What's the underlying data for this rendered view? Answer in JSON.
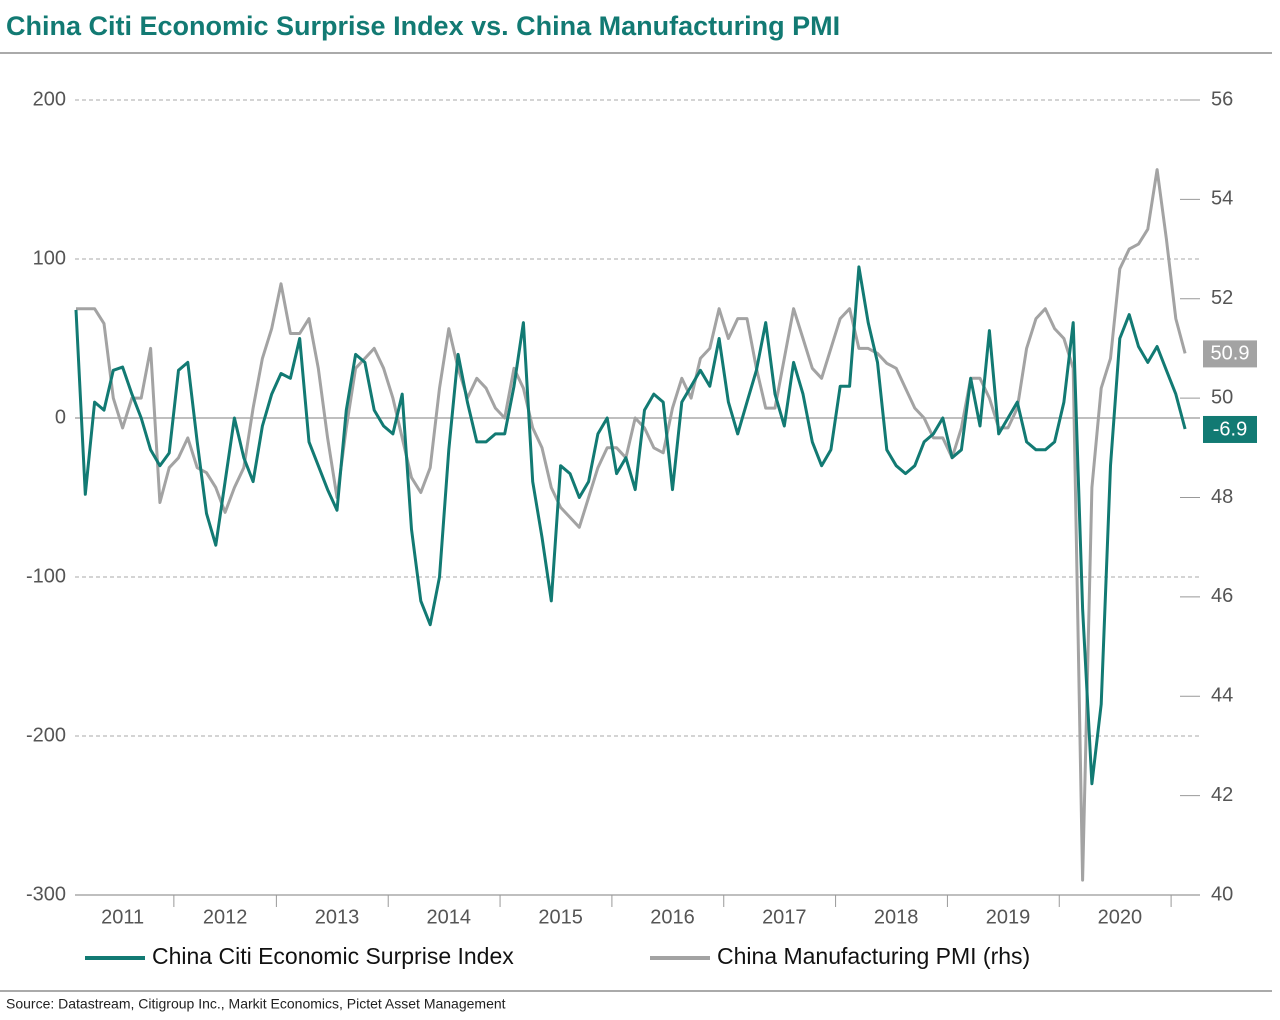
{
  "chart_data": {
    "type": "line",
    "title": "China Citi Economic Surprise Index vs. China Manufacturing PMI",
    "source": "Source: Datastream, Citigroup Inc., Markit Economics, Pictet Asset Management",
    "categories": [
      null,
      null,
      null,
      null,
      null,
      "2011",
      null,
      null,
      null,
      null,
      null,
      null,
      null,
      null,
      null,
      null,
      "2012",
      null,
      null,
      null,
      null,
      null,
      null,
      null,
      null,
      null,
      null,
      null,
      "2013",
      null,
      null,
      null,
      null,
      null,
      null,
      null,
      null,
      null,
      null,
      null,
      "2014",
      null,
      null,
      null,
      null,
      null,
      null,
      null,
      null,
      null,
      null,
      null,
      "2015",
      null,
      null,
      null,
      null,
      null,
      null,
      null,
      null,
      null,
      null,
      null,
      "2016",
      null,
      null,
      null,
      null,
      null,
      null,
      null,
      null,
      null,
      null,
      null,
      "2017",
      null,
      null,
      null,
      null,
      null,
      null,
      null,
      null,
      null,
      null,
      null,
      "2018",
      null,
      null,
      null,
      null,
      null,
      null,
      null,
      null,
      null,
      null,
      null,
      "2019",
      null,
      null,
      null,
      null,
      null,
      null,
      null,
      null,
      null,
      null,
      null,
      "2020",
      null,
      null,
      null,
      null,
      null,
      null,
      null
    ],
    "series": [
      {
        "name": "China Citi Economic Surprise Index",
        "color": "#127a73",
        "axis": "y",
        "values": [
          68,
          -48,
          10,
          5,
          30,
          32,
          15,
          0,
          -20,
          -30,
          -22,
          30,
          35,
          -15,
          -60,
          -80,
          -40,
          0,
          -25,
          -40,
          -5,
          15,
          28,
          25,
          50,
          -15,
          -30,
          -45,
          -58,
          5,
          40,
          35,
          5,
          -5,
          -10,
          15,
          -70,
          -115,
          -130,
          -100,
          -20,
          40,
          10,
          -15,
          -15,
          -10,
          -10,
          20,
          60,
          -40,
          -75,
          -115,
          -30,
          -35,
          -50,
          -40,
          -10,
          0,
          -35,
          -25,
          -45,
          5,
          15,
          10,
          -45,
          10,
          20,
          30,
          20,
          50,
          10,
          -10,
          10,
          30,
          60,
          15,
          -5,
          35,
          15,
          -15,
          -30,
          -20,
          20,
          20,
          95,
          60,
          35,
          -20,
          -30,
          -35,
          -30,
          -15,
          -10,
          0,
          -25,
          -20,
          25,
          -5,
          55,
          -10,
          0,
          10,
          -15,
          -20,
          -20,
          -15,
          10,
          60,
          -120,
          -230,
          -180,
          -30,
          50,
          65,
          45,
          35,
          45,
          30,
          15,
          -6.9
        ]
      },
      {
        "name": "China Manufacturing PMI (rhs)",
        "color": "#a3a3a3",
        "axis": "y2",
        "values": [
          51.8,
          51.8,
          51.8,
          51.5,
          50.0,
          49.4,
          50.0,
          50.0,
          51.0,
          47.9,
          48.6,
          48.8,
          49.2,
          48.6,
          48.5,
          48.2,
          47.7,
          48.2,
          48.6,
          49.8,
          50.8,
          51.4,
          52.3,
          51.3,
          51.3,
          51.6,
          50.6,
          49.2,
          48.0,
          49.4,
          50.6,
          50.8,
          51.0,
          50.6,
          50.0,
          49.2,
          48.4,
          48.1,
          48.6,
          50.2,
          51.4,
          50.6,
          50.0,
          50.4,
          50.2,
          49.8,
          49.6,
          50.6,
          50.2,
          49.4,
          49.0,
          48.2,
          47.8,
          47.6,
          47.4,
          48.0,
          48.6,
          49.0,
          49.0,
          48.8,
          49.6,
          49.4,
          49.0,
          48.9,
          49.8,
          50.4,
          50.0,
          50.8,
          51.0,
          51.8,
          51.2,
          51.6,
          51.6,
          50.6,
          49.8,
          49.8,
          50.8,
          51.8,
          51.2,
          50.6,
          50.4,
          51.0,
          51.6,
          51.8,
          51.0,
          51.0,
          50.9,
          50.7,
          50.6,
          50.2,
          49.8,
          49.6,
          49.2,
          49.2,
          48.8,
          49.4,
          50.4,
          50.4,
          50.0,
          49.4,
          49.4,
          49.8,
          51.0,
          51.6,
          51.8,
          51.4,
          51.2,
          50.6,
          40.3,
          48.2,
          50.2,
          50.8,
          52.6,
          53.0,
          53.1,
          53.4,
          54.6,
          53.2,
          51.6,
          50.9
        ]
      }
    ],
    "ylim": [
      -300,
      200
    ],
    "yticks": [
      -300,
      -200,
      -100,
      0,
      100,
      200
    ],
    "y2lim": [
      40,
      56
    ],
    "y2ticks": [
      40,
      42,
      44,
      46,
      48,
      50,
      52,
      54,
      56
    ],
    "grid": true,
    "legend": "bottom"
  }
}
